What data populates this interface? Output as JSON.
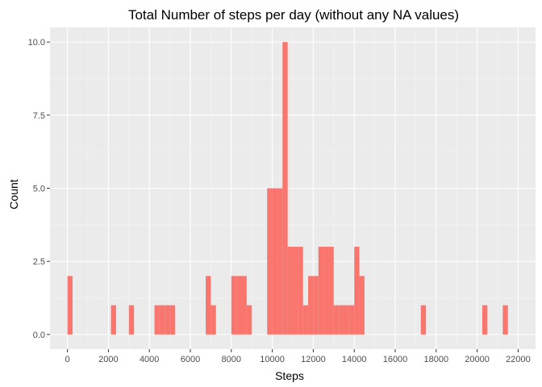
{
  "chart_data": {
    "type": "bar",
    "title": "Total Number of steps per day (without any NA values)",
    "xlabel": "Steps",
    "ylabel": "Count",
    "xlim": [
      -850,
      22850
    ],
    "ylim": [
      -0.5,
      10.5
    ],
    "x_ticks": [
      "0",
      "2000",
      "4000",
      "6000",
      "8000",
      "10000",
      "12000",
      "14000",
      "16000",
      "18000",
      "20000",
      "22000"
    ],
    "x_tick_values": [
      0,
      2000,
      4000,
      6000,
      8000,
      10000,
      12000,
      14000,
      16000,
      18000,
      20000,
      22000
    ],
    "y_ticks": [
      "0.0",
      "2.5",
      "5.0",
      "7.5",
      "10.0"
    ],
    "y_tick_values": [
      0,
      2.5,
      5,
      7.5,
      10
    ],
    "grid": true,
    "bin_width": 250,
    "bins": [
      {
        "x0": 0,
        "x1": 250,
        "count": 2
      },
      {
        "x0": 2125,
        "x1": 2375,
        "count": 1
      },
      {
        "x0": 3000,
        "x1": 3250,
        "count": 1
      },
      {
        "x0": 4250,
        "x1": 4500,
        "count": 1
      },
      {
        "x0": 4500,
        "x1": 4750,
        "count": 1
      },
      {
        "x0": 4750,
        "x1": 5000,
        "count": 1
      },
      {
        "x0": 5000,
        "x1": 5250,
        "count": 1
      },
      {
        "x0": 6750,
        "x1": 7000,
        "count": 2
      },
      {
        "x0": 7000,
        "x1": 7250,
        "count": 1
      },
      {
        "x0": 8000,
        "x1": 8250,
        "count": 2
      },
      {
        "x0": 8250,
        "x1": 8500,
        "count": 2
      },
      {
        "x0": 8500,
        "x1": 8750,
        "count": 2
      },
      {
        "x0": 8750,
        "x1": 9000,
        "count": 1
      },
      {
        "x0": 9750,
        "x1": 10000,
        "count": 5
      },
      {
        "x0": 10000,
        "x1": 10250,
        "count": 5
      },
      {
        "x0": 10250,
        "x1": 10500,
        "count": 5
      },
      {
        "x0": 10500,
        "x1": 10750,
        "count": 10
      },
      {
        "x0": 10750,
        "x1": 11000,
        "count": 3
      },
      {
        "x0": 11000,
        "x1": 11250,
        "count": 3
      },
      {
        "x0": 11250,
        "x1": 11500,
        "count": 3
      },
      {
        "x0": 11500,
        "x1": 11750,
        "count": 1
      },
      {
        "x0": 11750,
        "x1": 12000,
        "count": 2
      },
      {
        "x0": 12000,
        "x1": 12250,
        "count": 2
      },
      {
        "x0": 12250,
        "x1": 12500,
        "count": 3
      },
      {
        "x0": 12500,
        "x1": 12750,
        "count": 3
      },
      {
        "x0": 12750,
        "x1": 13000,
        "count": 3
      },
      {
        "x0": 13000,
        "x1": 13250,
        "count": 1
      },
      {
        "x0": 13250,
        "x1": 13500,
        "count": 1
      },
      {
        "x0": 13500,
        "x1": 13750,
        "count": 1
      },
      {
        "x0": 13750,
        "x1": 14000,
        "count": 1
      },
      {
        "x0": 14000,
        "x1": 14250,
        "count": 3
      },
      {
        "x0": 14250,
        "x1": 14500,
        "count": 2
      },
      {
        "x0": 17250,
        "x1": 17500,
        "count": 1
      },
      {
        "x0": 20250,
        "x1": 20500,
        "count": 1
      },
      {
        "x0": 21250,
        "x1": 21500,
        "count": 1
      }
    ]
  },
  "colors": {
    "bar": "#F8766D",
    "panel": "#EBEBEB",
    "grid_major": "#FFFFFF",
    "grid_minor": "#F5F5F5",
    "tick": "#333333"
  }
}
